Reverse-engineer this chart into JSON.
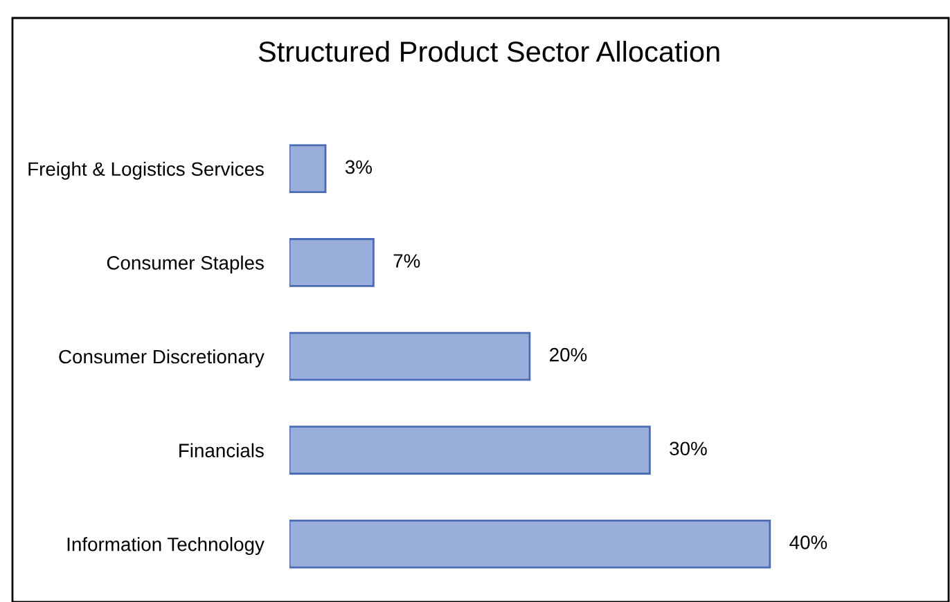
{
  "chart_data": {
    "type": "bar",
    "orientation": "horizontal",
    "title": "Structured Product Sector Allocation",
    "categories": [
      "Freight & Logistics Services",
      "Consumer Staples",
      "Consumer Discretionary",
      "Financials",
      "Information Technology"
    ],
    "values": [
      3,
      7,
      20,
      30,
      40
    ],
    "value_labels": [
      "3%",
      "7%",
      "20%",
      "30%",
      "40%"
    ],
    "color": "#9aaedc",
    "grid": false,
    "legend": false
  }
}
